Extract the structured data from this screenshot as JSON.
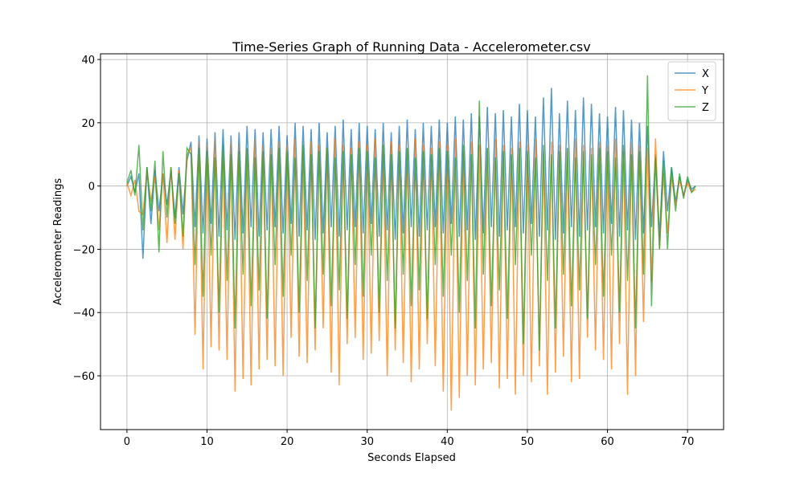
{
  "chart_data": {
    "type": "line",
    "title": "Time-Series Graph of Running Data - Accelerometer.csv",
    "x_label": "Seconds Elapsed",
    "y_label": "Accelerometer Readings",
    "xlim": [
      -3.3,
      74.5
    ],
    "ylim": [
      -77,
      41.8
    ],
    "xticks": [
      0,
      10,
      20,
      30,
      40,
      50,
      60,
      70
    ],
    "yticks": [
      {
        "value": -60,
        "label": "−60"
      },
      {
        "value": -40,
        "label": "−40"
      },
      {
        "value": -20,
        "label": "−20"
      },
      0,
      20,
      40
    ],
    "grid": true,
    "legend": "upper right",
    "x": [
      0,
      0.5,
      1,
      1.5,
      2,
      2.5,
      3,
      3.5,
      4,
      4.5,
      5,
      5.5,
      6,
      6.5,
      7,
      7.5,
      8,
      8.5,
      9,
      9.5,
      10,
      10.5,
      11,
      11.5,
      12,
      12.5,
      13,
      13.5,
      14,
      14.5,
      15,
      15.5,
      16,
      16.5,
      17,
      17.5,
      18,
      18.5,
      19,
      19.5,
      20,
      20.5,
      21,
      21.5,
      22,
      22.5,
      23,
      23.5,
      24,
      24.5,
      25,
      25.5,
      26,
      26.5,
      27,
      27.5,
      28,
      28.5,
      29,
      29.5,
      30,
      30.5,
      31,
      31.5,
      32,
      32.5,
      33,
      33.5,
      34,
      34.5,
      35,
      35.5,
      36,
      36.5,
      37,
      37.5,
      38,
      38.5,
      39,
      39.5,
      40,
      40.5,
      41,
      41.5,
      42,
      42.5,
      43,
      43.5,
      44,
      44.5,
      45,
      45.5,
      46,
      46.5,
      47,
      47.5,
      48,
      48.5,
      49,
      49.5,
      50,
      50.5,
      51,
      51.5,
      52,
      52.5,
      53,
      53.5,
      54,
      54.5,
      55,
      55.5,
      56,
      56.5,
      57,
      57.5,
      58,
      58.5,
      59,
      59.5,
      60,
      60.5,
      61,
      61.5,
      62,
      62.5,
      63,
      63.5,
      64,
      64.5,
      65,
      65.5,
      66,
      66.5,
      67,
      67.5,
      68,
      68.5,
      69,
      69.5,
      70,
      70.5,
      71
    ],
    "series": [
      {
        "name": "X",
        "color": "#1f77b4",
        "values": [
          0,
          3,
          -2,
          4,
          -23,
          6,
          -12,
          5,
          -8,
          4,
          -6,
          5,
          -10,
          6,
          -9,
          8,
          14,
          -13,
          16,
          -15,
          15,
          -12,
          17,
          -16,
          18,
          -14,
          16,
          -17,
          17,
          -15,
          19,
          -13,
          18,
          -16,
          17,
          -14,
          18,
          -13,
          19,
          -15,
          16,
          -12,
          20,
          -16,
          19,
          -14,
          18,
          -17,
          20,
          -15,
          17,
          -13,
          19,
          -16,
          21,
          -14,
          18,
          -13,
          20,
          -15,
          19,
          -12,
          18,
          -16,
          20,
          -14,
          17,
          -17,
          19,
          -15,
          21,
          -13,
          18,
          -16,
          20,
          -14,
          19,
          -13,
          21,
          -15,
          20,
          -12,
          22,
          -16,
          21,
          -14,
          23,
          -17,
          22,
          -15,
          25,
          -13,
          23,
          -16,
          24,
          -14,
          22,
          -13,
          26,
          -15,
          24,
          -12,
          22,
          -16,
          28,
          -14,
          31,
          -17,
          23,
          -15,
          27,
          -13,
          24,
          -16,
          28,
          -14,
          26,
          -13,
          23,
          -15,
          22,
          -12,
          25,
          -16,
          24,
          -14,
          21,
          -17,
          20,
          -15,
          19,
          -13,
          10,
          -16,
          11,
          -8,
          6,
          -5,
          3,
          -3,
          2,
          -1,
          0
        ]
      },
      {
        "name": "Y",
        "color": "#ff7f0e",
        "values": [
          1,
          -3,
          2,
          -8,
          -9,
          5,
          -5,
          3,
          -14,
          4,
          -18,
          6,
          -17,
          5,
          -20,
          10,
          12,
          -47,
          14,
          -58,
          13,
          -51,
          15,
          -52,
          11,
          -55,
          14,
          -65,
          13,
          -61,
          12,
          -63,
          15,
          -58,
          13,
          -55,
          12,
          -57,
          14,
          -60,
          13,
          -48,
          15,
          -54,
          11,
          -56,
          14,
          -52,
          13,
          -45,
          12,
          -59,
          15,
          -63,
          13,
          -50,
          12,
          -48,
          14,
          -55,
          13,
          -53,
          15,
          -49,
          11,
          -60,
          14,
          -52,
          13,
          -56,
          12,
          -62,
          15,
          -58,
          13,
          -50,
          12,
          -57,
          14,
          -65,
          13,
          -71,
          15,
          -67,
          11,
          -60,
          14,
          -63,
          13,
          -58,
          12,
          -56,
          15,
          -64,
          13,
          -61,
          12,
          -66,
          14,
          -60,
          13,
          -62,
          15,
          -57,
          11,
          -66,
          14,
          -59,
          13,
          -54,
          12,
          -62,
          15,
          -61,
          13,
          -48,
          12,
          -52,
          14,
          -55,
          13,
          -58,
          15,
          -50,
          11,
          -66,
          14,
          -60,
          13,
          -43,
          12,
          -30,
          15,
          -20,
          4,
          -15,
          3,
          -6,
          2,
          -3,
          1,
          -2,
          -1
        ]
      },
      {
        "name": "Z",
        "color": "#2ca02c",
        "values": [
          1,
          5,
          -3,
          13,
          -14,
          6,
          -8,
          8,
          -21,
          11,
          -10,
          6,
          -12,
          4,
          -16,
          12,
          10,
          -25,
          12,
          -35,
          11,
          -22,
          9,
          -40,
          13,
          -30,
          10,
          -45,
          11,
          -28,
          12,
          -38,
          9,
          -33,
          11,
          -42,
          10,
          -25,
          12,
          -35,
          11,
          -22,
          9,
          -40,
          13,
          -30,
          10,
          -45,
          11,
          -28,
          12,
          -38,
          9,
          -33,
          11,
          -42,
          10,
          -25,
          12,
          -35,
          11,
          -22,
          9,
          -40,
          13,
          -30,
          10,
          -45,
          11,
          -28,
          12,
          -38,
          9,
          -33,
          11,
          -42,
          10,
          -25,
          12,
          -35,
          11,
          -22,
          9,
          -40,
          13,
          -30,
          10,
          -45,
          27,
          -28,
          12,
          -38,
          9,
          -33,
          11,
          -42,
          10,
          -25,
          12,
          -50,
          11,
          -22,
          9,
          -52,
          13,
          -30,
          10,
          -45,
          11,
          -28,
          12,
          -38,
          9,
          -33,
          11,
          -42,
          10,
          -25,
          12,
          -35,
          11,
          -22,
          9,
          -40,
          13,
          -30,
          10,
          -45,
          11,
          -28,
          35,
          -38,
          9,
          -20,
          8,
          -20,
          6,
          -8,
          4,
          -4,
          3,
          -2,
          0
        ]
      }
    ]
  }
}
